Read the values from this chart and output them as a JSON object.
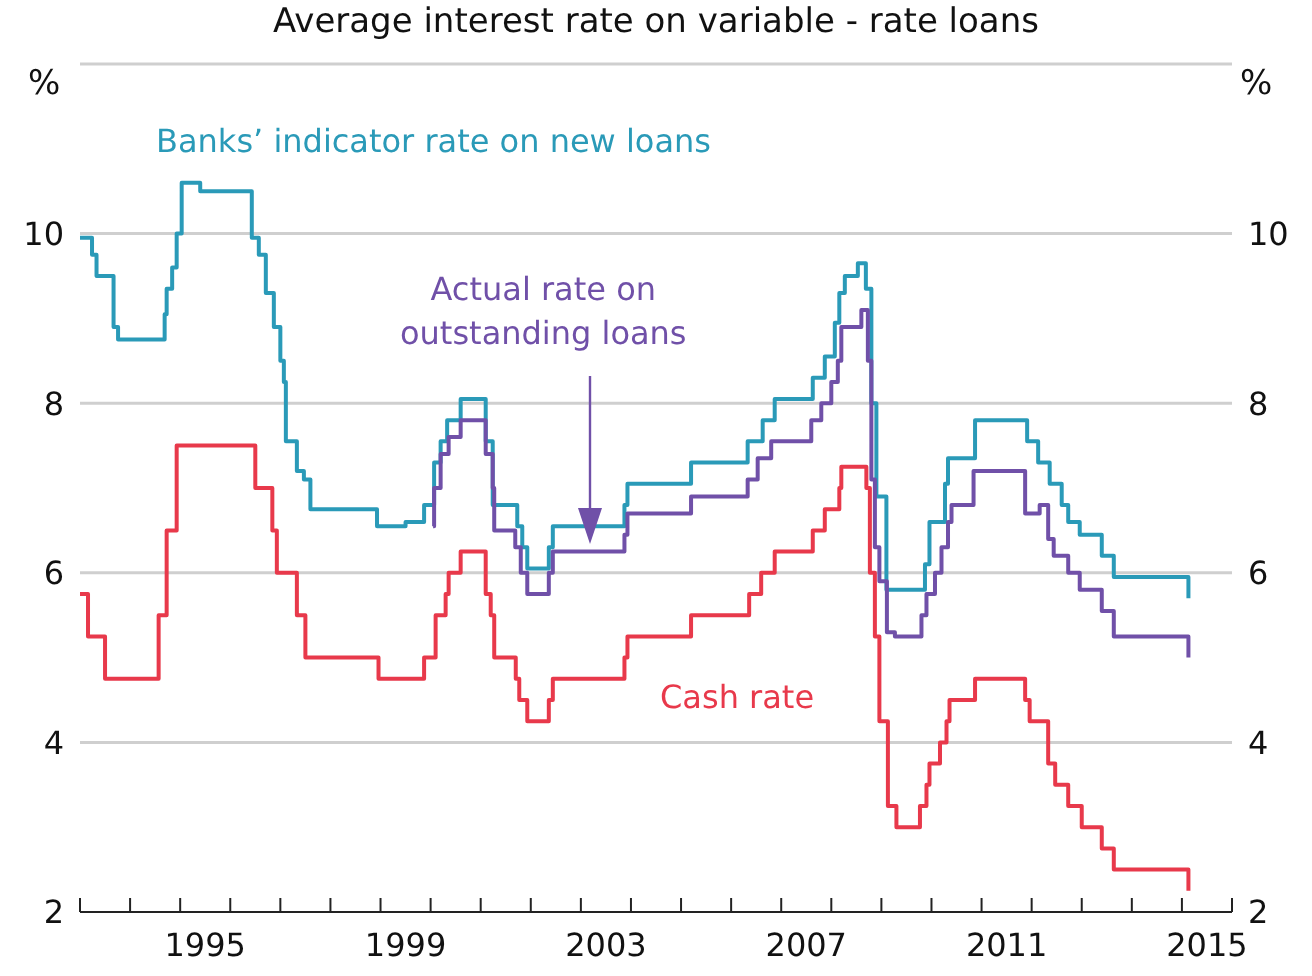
{
  "chart_data": {
    "type": "step",
    "title": "Average interest rate on variable - rate loans",
    "ylabel": "%",
    "y2label": "%",
    "xlim": [
      1993,
      2016
    ],
    "xticks": [
      {
        "value": 1993,
        "label": null
      },
      {
        "value": 1994,
        "label": null
      },
      {
        "value": 1995,
        "label": null
      },
      {
        "value": 1995.5,
        "label": "1995"
      },
      {
        "value": 1996,
        "label": null
      },
      {
        "value": 1997,
        "label": null
      },
      {
        "value": 1998,
        "label": null
      },
      {
        "value": 1999,
        "label": null
      },
      {
        "value": 1999.5,
        "label": "1999"
      },
      {
        "value": 2000,
        "label": null
      },
      {
        "value": 2001,
        "label": null
      },
      {
        "value": 2002,
        "label": null
      },
      {
        "value": 2003,
        "label": null
      },
      {
        "value": 2003.5,
        "label": "2003"
      },
      {
        "value": 2004,
        "label": null
      },
      {
        "value": 2005,
        "label": null
      },
      {
        "value": 2006,
        "label": null
      },
      {
        "value": 2007,
        "label": null
      },
      {
        "value": 2007.5,
        "label": "2007"
      },
      {
        "value": 2008,
        "label": null
      },
      {
        "value": 2009,
        "label": null
      },
      {
        "value": 2010,
        "label": null
      },
      {
        "value": 2011,
        "label": null
      },
      {
        "value": 2011.5,
        "label": "2011"
      },
      {
        "value": 2012,
        "label": null
      },
      {
        "value": 2013,
        "label": null
      },
      {
        "value": 2014,
        "label": null
      },
      {
        "value": 2015,
        "label": null
      },
      {
        "value": 2015.5,
        "label": "2015"
      },
      {
        "value": 2016,
        "label": null
      }
    ],
    "ylim": [
      2,
      12
    ],
    "yticks": [
      2,
      4,
      6,
      8,
      10,
      {
        "value": 12,
        "label": null
      }
    ],
    "y2lim": [
      2,
      12
    ],
    "y2ticks": [
      2,
      4,
      6,
      8,
      10
    ],
    "grid": "y",
    "marker": "none",
    "line_style": "solid",
    "series": [
      {
        "name": "Banks’ indicator rate on new loans",
        "color": "#2a9ab8",
        "x": [
          1993,
          1993.24,
          1993.33,
          1993.67,
          1993.76,
          1994.69,
          1994.73,
          1994.84,
          1994.93,
          1995.03,
          1995.4,
          1996.43,
          1996.57,
          1996.71,
          1996.87,
          1997.0,
          1997.07,
          1997.11,
          1997.33,
          1997.47,
          1997.6,
          1998.93,
          1999.5,
          1999.87,
          2000.07,
          2000.2,
          2000.33,
          2000.6,
          2001.1,
          2001.24,
          2001.73,
          2001.83,
          2001.93,
          2002.36,
          2002.44,
          2003.87,
          2003.93,
          2005.2,
          2006.33,
          2006.63,
          2006.87,
          2007.63,
          2007.87,
          2008.07,
          2008.16,
          2008.27,
          2008.53,
          2008.69,
          2008.8,
          2008.9,
          2009.1,
          2009.87,
          2009.96,
          2010.27,
          2010.33,
          2010.87,
          2011.91,
          2012.13,
          2012.36,
          2012.6,
          2012.73,
          2012.96,
          2013.4,
          2013.64,
          2015.13
        ],
        "values": [
          9.95,
          9.75,
          9.5,
          8.9,
          8.75,
          9.05,
          9.35,
          9.6,
          10.0,
          10.6,
          10.5,
          9.95,
          9.75,
          9.3,
          8.9,
          8.5,
          8.25,
          7.55,
          7.2,
          7.1,
          6.75,
          6.55,
          6.6,
          6.8,
          7.3,
          7.55,
          7.8,
          8.05,
          7.55,
          6.8,
          6.55,
          6.3,
          6.05,
          6.3,
          6.55,
          6.8,
          7.05,
          7.3,
          7.55,
          7.8,
          8.05,
          8.3,
          8.55,
          8.95,
          9.3,
          9.5,
          9.65,
          9.35,
          8.0,
          6.9,
          5.8,
          6.1,
          6.6,
          7.05,
          7.35,
          7.8,
          7.55,
          7.3,
          7.05,
          6.8,
          6.6,
          6.45,
          6.2,
          5.95,
          5.7
        ]
      },
      {
        "name": "Actual rate on\noutstanding loans",
        "color": "#7050a8",
        "x": [
          2000.05,
          2000.07,
          2000.2,
          2000.36,
          2000.6,
          2001.1,
          2001.24,
          2001.27,
          2001.69,
          2001.8,
          2001.93,
          2002.36,
          2002.44,
          2003.87,
          2003.93,
          2005.2,
          2006.33,
          2006.53,
          2006.8,
          2007.6,
          2007.8,
          2008.0,
          2008.13,
          2008.2,
          2008.6,
          2008.73,
          2008.8,
          2008.87,
          2008.96,
          2009.11,
          2009.27,
          2009.8,
          2009.9,
          2010.07,
          2010.2,
          2010.33,
          2010.4,
          2010.84,
          2011.87,
          2012.16,
          2012.33,
          2012.44,
          2012.73,
          2012.96,
          2013.4,
          2013.64,
          2015.13
        ],
        "values": [
          6.55,
          7.0,
          7.4,
          7.6,
          7.8,
          7.4,
          7.0,
          6.5,
          6.3,
          6.0,
          5.75,
          6.0,
          6.25,
          6.45,
          6.7,
          6.9,
          7.1,
          7.35,
          7.55,
          7.8,
          8.0,
          8.25,
          8.5,
          8.9,
          9.1,
          8.5,
          7.1,
          6.3,
          5.9,
          5.3,
          5.25,
          5.5,
          5.75,
          6.0,
          6.3,
          6.6,
          6.8,
          7.2,
          6.7,
          6.8,
          6.4,
          6.2,
          6.0,
          5.8,
          5.55,
          5.25,
          5.0
        ]
      },
      {
        "name": "Cash rate",
        "color": "#e8394b",
        "x": [
          1993,
          1993.16,
          1993.5,
          1994.57,
          1994.73,
          1994.93,
          1996.5,
          1996.84,
          1996.93,
          1997.33,
          1997.5,
          1998.96,
          1999.87,
          2000.1,
          2000.3,
          2000.36,
          2000.6,
          2001.1,
          2001.2,
          2001.27,
          2001.7,
          2001.77,
          2001.93,
          2002.36,
          2002.44,
          2003.87,
          2003.93,
          2005.2,
          2006.36,
          2006.6,
          2006.87,
          2007.63,
          2007.87,
          2008.16,
          2008.2,
          2008.7,
          2008.77,
          2008.87,
          2008.96,
          2009.13,
          2009.3,
          2009.77,
          2009.9,
          2009.96,
          2010.17,
          2010.3,
          2010.36,
          2010.87,
          2011.87,
          2011.96,
          2012.33,
          2012.47,
          2012.73,
          2013.0,
          2013.4,
          2013.64,
          2015.13
        ],
        "values": [
          5.75,
          5.25,
          4.75,
          5.5,
          6.5,
          7.5,
          7.0,
          6.5,
          6.0,
          5.5,
          5.0,
          4.75,
          5.0,
          5.5,
          5.75,
          6.0,
          6.25,
          5.75,
          5.5,
          5.0,
          4.75,
          4.5,
          4.25,
          4.5,
          4.75,
          5.0,
          5.25,
          5.5,
          5.75,
          6.0,
          6.25,
          6.5,
          6.75,
          7.0,
          7.25,
          7.0,
          6.0,
          5.25,
          4.25,
          3.25,
          3.0,
          3.25,
          3.5,
          3.75,
          4.0,
          4.25,
          4.5,
          4.75,
          4.5,
          4.25,
          3.75,
          3.5,
          3.25,
          3.0,
          2.75,
          2.5,
          2.25
        ]
      }
    ]
  }
}
